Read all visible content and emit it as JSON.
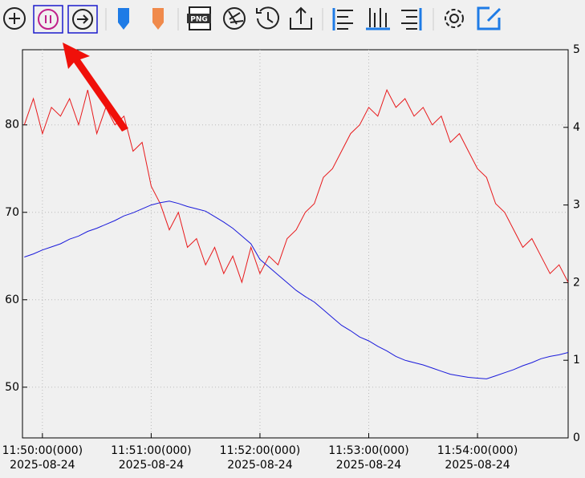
{
  "toolbar": {
    "png_label": "PNG"
  },
  "chart_data": {
    "type": "line",
    "x": [
      "11:49:50",
      "11:49:55",
      "11:50:00",
      "11:50:05",
      "11:50:10",
      "11:50:15",
      "11:50:20",
      "11:50:25",
      "11:50:30",
      "11:50:35",
      "11:50:40",
      "11:50:45",
      "11:50:50",
      "11:50:55",
      "11:51:00",
      "11:51:05",
      "11:51:10",
      "11:51:15",
      "11:51:20",
      "11:51:25",
      "11:51:30",
      "11:51:35",
      "11:51:40",
      "11:51:45",
      "11:51:50",
      "11:51:55",
      "11:52:00",
      "11:52:05",
      "11:52:10",
      "11:52:15",
      "11:52:20",
      "11:52:25",
      "11:52:30",
      "11:52:35",
      "11:52:40",
      "11:52:45",
      "11:52:50",
      "11:52:55",
      "11:53:00",
      "11:53:05",
      "11:53:10",
      "11:53:15",
      "11:53:20",
      "11:53:25",
      "11:53:30",
      "11:53:35",
      "11:53:40",
      "11:53:45",
      "11:53:50",
      "11:53:55",
      "11:54:00",
      "11:54:05",
      "11:54:10",
      "11:54:15",
      "11:54:20",
      "11:54:25",
      "11:54:30",
      "11:54:35",
      "11:54:40",
      "11:54:45",
      "11:54:50"
    ],
    "xlim": [
      "11:49:49",
      "11:54:50"
    ],
    "xticks": [
      {
        "value": "11:50:00",
        "label": "11:50:00(000)\n2025-08-24"
      },
      {
        "value": "11:51:00",
        "label": "11:51:00(000)\n2025-08-24"
      },
      {
        "value": "11:52:00",
        "label": "11:52:00(000)\n2025-08-24"
      },
      {
        "value": "11:53:00",
        "label": "11:53:00(000)\n2025-08-24"
      },
      {
        "value": "11:54:00",
        "label": "11:54:00(000)\n2025-08-24"
      }
    ],
    "ylim": [
      44.2,
      88.6
    ],
    "yticks": [
      50,
      60,
      70,
      80
    ],
    "y2lim": [
      0,
      5
    ],
    "y2ticks": [
      0,
      1,
      2,
      3,
      4,
      5
    ],
    "grid": true,
    "series": [
      {
        "color": "#e8191b",
        "values": [
          80,
          83,
          79,
          82,
          81,
          83,
          80,
          84,
          79,
          82,
          80,
          81,
          77,
          78,
          73,
          71,
          68,
          70,
          66,
          67,
          64,
          66,
          63,
          65,
          62,
          66,
          63,
          65,
          64,
          67,
          68,
          70,
          71,
          74,
          75,
          77,
          79,
          80,
          82,
          81,
          84,
          82,
          83,
          81,
          82,
          80,
          81,
          78,
          79,
          77,
          75,
          74,
          71,
          70,
          68,
          66,
          67,
          65,
          63,
          64,
          62
        ]
      },
      {
        "color": "#1a1adb",
        "axis": "y2",
        "values": [
          2.33,
          2.37,
          2.42,
          2.46,
          2.5,
          2.56,
          2.6,
          2.66,
          2.7,
          2.75,
          2.8,
          2.86,
          2.9,
          2.95,
          3.0,
          3.03,
          3.05,
          3.02,
          2.98,
          2.95,
          2.92,
          2.85,
          2.78,
          2.7,
          2.6,
          2.5,
          2.3,
          2.2,
          2.1,
          2.0,
          1.9,
          1.82,
          1.75,
          1.65,
          1.55,
          1.45,
          1.38,
          1.3,
          1.25,
          1.18,
          1.12,
          1.05,
          1.0,
          0.97,
          0.94,
          0.9,
          0.86,
          0.82,
          0.8,
          0.78,
          0.77,
          0.76,
          0.8,
          0.84,
          0.88,
          0.93,
          0.97,
          1.02,
          1.05,
          1.07,
          1.1
        ]
      }
    ]
  }
}
